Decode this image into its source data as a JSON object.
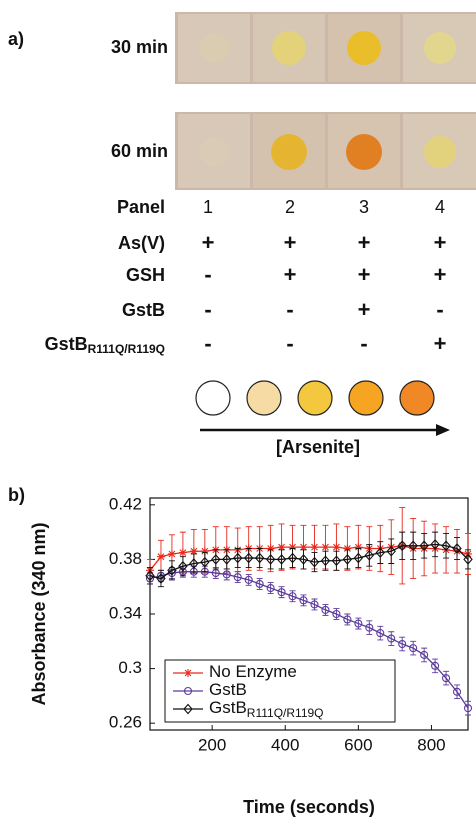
{
  "panel_a": {
    "label": "a)",
    "photo_rows": [
      {
        "label": "30 min"
      },
      {
        "label": "60 min"
      }
    ],
    "table": {
      "header_label": "Panel",
      "columns": [
        "1",
        "2",
        "3",
        "4"
      ],
      "rows": [
        {
          "label": "As(V)",
          "cells": [
            "+",
            "+",
            "+",
            "+"
          ]
        },
        {
          "label": "GSH",
          "cells": [
            "-",
            "+",
            "+",
            "+"
          ]
        },
        {
          "label": "GstB",
          "cells": [
            "-",
            "-",
            "+",
            "-"
          ]
        },
        {
          "label": "GstB",
          "label_subscript": "R111Q/R119Q",
          "cells": [
            "-",
            "-",
            "-",
            "+"
          ]
        }
      ]
    },
    "gradient_label": "[Arsenite]"
  },
  "panel_b": {
    "label": "b)"
  },
  "chart_data": {
    "type": "line",
    "xlabel": "Time (seconds)",
    "ylabel": "Absorbance (340 nm)",
    "x": [
      30,
      60,
      90,
      120,
      150,
      180,
      210,
      240,
      270,
      300,
      330,
      360,
      390,
      420,
      450,
      480,
      510,
      540,
      570,
      600,
      630,
      660,
      690,
      720,
      750,
      780,
      810,
      840,
      870,
      900
    ],
    "xlim": [
      30,
      900
    ],
    "xticks": [
      200,
      400,
      600,
      800
    ],
    "ylim": [
      0.255,
      0.425
    ],
    "yticks": [
      0.42,
      0.38,
      0.34,
      0.3,
      0.26
    ],
    "legend": "lower left",
    "series": [
      {
        "name": "No Enzyme",
        "color": "#e8291c",
        "marker": "star",
        "values": [
          0.372,
          0.382,
          0.384,
          0.385,
          0.386,
          0.386,
          0.387,
          0.387,
          0.387,
          0.388,
          0.388,
          0.388,
          0.389,
          0.389,
          0.389,
          0.389,
          0.389,
          0.389,
          0.388,
          0.389,
          0.388,
          0.388,
          0.389,
          0.39,
          0.388,
          0.388,
          0.388,
          0.387,
          0.386,
          0.384
        ],
        "errors": [
          0.008,
          0.012,
          0.014,
          0.015,
          0.016,
          0.016,
          0.017,
          0.017,
          0.016,
          0.016,
          0.016,
          0.017,
          0.017,
          0.016,
          0.016,
          0.016,
          0.016,
          0.017,
          0.016,
          0.016,
          0.016,
          0.017,
          0.02,
          0.028,
          0.022,
          0.02,
          0.018,
          0.017,
          0.016,
          0.015
        ]
      },
      {
        "name": "GstB",
        "color": "#5b3a9c",
        "marker": "circle",
        "values": [
          0.366,
          0.368,
          0.37,
          0.371,
          0.371,
          0.371,
          0.37,
          0.369,
          0.367,
          0.365,
          0.362,
          0.359,
          0.356,
          0.353,
          0.35,
          0.347,
          0.343,
          0.34,
          0.336,
          0.333,
          0.33,
          0.326,
          0.322,
          0.318,
          0.315,
          0.31,
          0.302,
          0.293,
          0.283,
          0.271
        ],
        "errors": [
          0.004,
          0.004,
          0.004,
          0.004,
          0.004,
          0.004,
          0.004,
          0.004,
          0.004,
          0.004,
          0.004,
          0.004,
          0.004,
          0.004,
          0.004,
          0.004,
          0.004,
          0.004,
          0.004,
          0.004,
          0.005,
          0.005,
          0.005,
          0.005,
          0.005,
          0.005,
          0.005,
          0.005,
          0.005,
          0.005
        ]
      },
      {
        "name": "GstB",
        "name_subscript": "R111Q/R119Q",
        "color": "#111111",
        "marker": "diamond",
        "values": [
          0.368,
          0.366,
          0.372,
          0.375,
          0.377,
          0.378,
          0.38,
          0.38,
          0.381,
          0.381,
          0.381,
          0.38,
          0.38,
          0.381,
          0.38,
          0.378,
          0.379,
          0.379,
          0.38,
          0.381,
          0.383,
          0.385,
          0.386,
          0.39,
          0.39,
          0.39,
          0.391,
          0.39,
          0.388,
          0.38
        ],
        "errors": [
          0.006,
          0.006,
          0.007,
          0.007,
          0.007,
          0.007,
          0.007,
          0.007,
          0.007,
          0.007,
          0.007,
          0.007,
          0.007,
          0.007,
          0.007,
          0.007,
          0.007,
          0.007,
          0.007,
          0.007,
          0.008,
          0.008,
          0.009,
          0.01,
          0.01,
          0.009,
          0.009,
          0.009,
          0.008,
          0.007
        ]
      }
    ]
  }
}
